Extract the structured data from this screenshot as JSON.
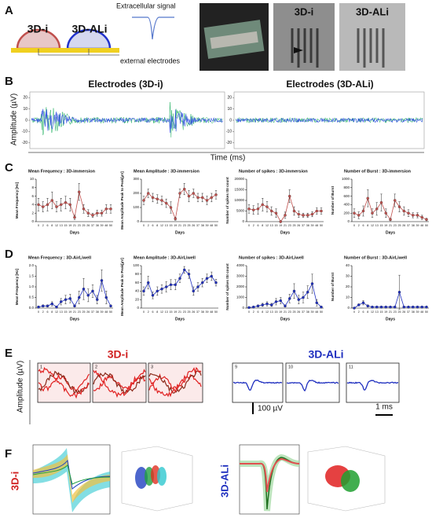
{
  "panel_labels": [
    "A",
    "B",
    "C",
    "D",
    "E",
    "F"
  ],
  "a": {
    "left_label": "3D-i",
    "right_label": "3D-ALi",
    "signal_label": "Extracellular signal",
    "electrode_label": "external electrodes",
    "photo_left": "3D-i",
    "photo_right": "3D-ALi"
  },
  "b": {
    "left_title": "Electrodes (3D-i)",
    "right_title": "Electrodes (3D-ALi)",
    "y_label": "Amplitude (µV)",
    "x_label": "Time (ms)",
    "ylim": [
      -25,
      25
    ],
    "yticks": [
      20,
      10,
      0,
      -10,
      -20
    ]
  },
  "chart_data": [
    {
      "type": "line",
      "title": "Mean Frequency : 3D-immersion",
      "y_label": "Mean Frequency [Hz]",
      "x_label": "Days",
      "color": "#c0504d",
      "categories": [
        "0",
        "2",
        "6",
        "8",
        "12",
        "13",
        "15",
        "19",
        "21",
        "23",
        "25",
        "26",
        "37",
        "38",
        "39",
        "48",
        "50"
      ],
      "values": [
        4,
        3.5,
        4,
        5,
        3.5,
        4,
        4.5,
        4,
        1,
        7,
        3,
        2,
        1.5,
        2,
        2,
        3,
        3
      ],
      "errors": [
        1.5,
        1.2,
        1.5,
        2,
        1.2,
        1.5,
        1.5,
        1.5,
        0.5,
        2,
        1,
        0.8,
        0.5,
        0.7,
        0.7,
        1,
        1
      ],
      "ylim": [
        0,
        10
      ],
      "yticks": [
        0,
        2,
        4,
        6,
        8,
        10
      ]
    },
    {
      "type": "line",
      "title": "Mean Amplitude : 3D-immersion",
      "y_label": "Mean Amplitude Peak to Peak[µV]",
      "x_label": "Days",
      "color": "#c0504d",
      "categories": [
        "0",
        "2",
        "6",
        "8",
        "12",
        "13",
        "15",
        "19",
        "21",
        "23",
        "25",
        "26",
        "37",
        "38",
        "39",
        "48",
        "50"
      ],
      "values": [
        150,
        200,
        170,
        160,
        150,
        130,
        100,
        20,
        200,
        230,
        180,
        200,
        170,
        170,
        150,
        170,
        190
      ],
      "errors": [
        30,
        30,
        30,
        30,
        30,
        30,
        40,
        10,
        30,
        40,
        40,
        30,
        30,
        30,
        30,
        30,
        30
      ],
      "ylim": [
        0,
        300
      ],
      "yticks": [
        0,
        100,
        200,
        300
      ]
    },
    {
      "type": "line",
      "title": "Number of spikes : 3D-immersion",
      "y_label": "Number of spikes ISI count",
      "x_label": "Days",
      "color": "#c0504d",
      "categories": [
        "0",
        "2",
        "6",
        "8",
        "12",
        "13",
        "15",
        "19",
        "21",
        "23",
        "25",
        "26",
        "37",
        "38",
        "39",
        "48",
        "50"
      ],
      "values": [
        6000,
        5500,
        6000,
        8000,
        7000,
        5000,
        4000,
        0,
        3000,
        12000,
        5000,
        3500,
        3000,
        3000,
        3500,
        5000,
        5000
      ],
      "errors": [
        2000,
        2000,
        2500,
        3000,
        2500,
        2000,
        2000,
        500,
        1500,
        3000,
        2000,
        1500,
        1000,
        1000,
        1200,
        1500,
        1500
      ],
      "ylim": [
        0,
        20000
      ],
      "yticks": [
        0,
        5000,
        10000,
        15000,
        20000
      ]
    },
    {
      "type": "line",
      "title": "Number of Burst : 3D-immersion",
      "y_label": "Number of Burst",
      "x_label": "Days",
      "color": "#c0504d",
      "categories": [
        "0",
        "2",
        "6",
        "8",
        "12",
        "13",
        "15",
        "19",
        "21",
        "23",
        "25",
        "26",
        "37",
        "38",
        "39",
        "48",
        "50"
      ],
      "values": [
        200,
        150,
        250,
        550,
        200,
        300,
        450,
        200,
        50,
        500,
        350,
        250,
        200,
        150,
        150,
        100,
        50
      ],
      "errors": [
        100,
        80,
        120,
        200,
        100,
        150,
        200,
        100,
        30,
        150,
        120,
        100,
        80,
        60,
        60,
        50,
        30
      ],
      "ylim": [
        0,
        1000
      ],
      "yticks": [
        0,
        200,
        400,
        600,
        800,
        1000
      ]
    },
    {
      "type": "line",
      "title": "Mean Frequency : 3D-AirLiwell",
      "y_label": "Mean Frequency [Hz]",
      "x_label": "Days",
      "color": "#1f2fbf",
      "categories": [
        "0",
        "2",
        "6",
        "8",
        "12",
        "13",
        "15",
        "19",
        "21",
        "23",
        "25",
        "26",
        "37",
        "38",
        "39",
        "48",
        "50"
      ],
      "values": [
        0.05,
        0.1,
        0.1,
        0.2,
        0.05,
        0.3,
        0.4,
        0.45,
        0.1,
        0.5,
        0.9,
        0.6,
        0.8,
        0.4,
        1.3,
        0.5,
        0.1
      ],
      "errors": [
        0.05,
        0.05,
        0.05,
        0.1,
        0.05,
        0.15,
        0.2,
        0.2,
        0.05,
        0.3,
        0.5,
        0.3,
        0.3,
        0.2,
        0.5,
        0.3,
        0.05
      ],
      "ylim": [
        0,
        2
      ],
      "yticks": [
        {
          "value": 0,
          "label": "0.0"
        },
        {
          "value": 0.5,
          "label": "0.5"
        },
        {
          "value": 1,
          "label": "1.0"
        },
        {
          "value": 1.5,
          "label": "1.5"
        },
        {
          "value": 2,
          "label": "2.0"
        }
      ]
    },
    {
      "type": "line",
      "title": "Mean Amplitude : 3D-AirLiwell",
      "y_label": "Mean Amplitude Peak to Peak[µV]",
      "x_label": "Days",
      "color": "#1f2fbf",
      "categories": [
        "0",
        "2",
        "6",
        "8",
        "12",
        "13",
        "15",
        "19",
        "21",
        "23",
        "25",
        "26",
        "37",
        "38",
        "39",
        "48",
        "50"
      ],
      "values": [
        40,
        60,
        30,
        40,
        45,
        50,
        55,
        55,
        70,
        90,
        80,
        40,
        50,
        60,
        70,
        75,
        60
      ],
      "errors": [
        10,
        15,
        8,
        10,
        10,
        12,
        12,
        12,
        10,
        8,
        10,
        10,
        10,
        10,
        10,
        10,
        8
      ],
      "ylim": [
        0,
        100
      ],
      "yticks": [
        0,
        20,
        40,
        60,
        80,
        100
      ]
    },
    {
      "type": "line",
      "title": "Number of spikes : 3D-AirLiwell",
      "y_label": "Number of spikes ISI count",
      "x_label": "Days",
      "color": "#1f2fbf",
      "categories": [
        "0",
        "2",
        "6",
        "8",
        "12",
        "13",
        "15",
        "19",
        "21",
        "23",
        "25",
        "26",
        "37",
        "38",
        "39",
        "48",
        "50"
      ],
      "values": [
        50,
        100,
        200,
        300,
        400,
        300,
        600,
        700,
        200,
        900,
        1600,
        800,
        1000,
        1500,
        2300,
        500,
        100
      ],
      "errors": [
        30,
        50,
        100,
        150,
        200,
        150,
        300,
        300,
        100,
        400,
        700,
        400,
        500,
        600,
        900,
        300,
        50
      ],
      "ylim": [
        0,
        4000
      ],
      "yticks": [
        0,
        1000,
        2000,
        3000,
        4000
      ]
    },
    {
      "type": "line",
      "title": "Number of Burst : 3D-AirLiwell",
      "y_label": "Number of Burst",
      "x_label": "Days",
      "color": "#1f2fbf",
      "categories": [
        "0",
        "2",
        "6",
        "8",
        "12",
        "13",
        "15",
        "19",
        "21",
        "23",
        "25",
        "26",
        "37",
        "38",
        "39",
        "48",
        "50"
      ],
      "values": [
        0,
        3,
        5,
        2,
        1,
        1,
        1,
        1,
        1,
        1,
        15,
        1,
        1,
        1,
        1,
        1,
        1
      ],
      "errors": [
        0,
        1,
        2,
        1,
        0.5,
        0.5,
        0.5,
        0.5,
        0.5,
        0.5,
        16,
        0.5,
        0.5,
        0.5,
        0.5,
        0.5,
        0.5
      ],
      "ylim": [
        0,
        40
      ],
      "yticks": [
        0,
        10,
        20,
        30,
        40
      ]
    }
  ],
  "e": {
    "left_title": "3D-i",
    "right_title": "3D-ALi",
    "y_label": "Amplitude (µV)",
    "channels": [
      "1",
      "2",
      "3",
      "9",
      "10",
      "11"
    ],
    "scale_v": "100 µV",
    "scale_t": "1 ms"
  },
  "f": {
    "left_label": "3D-i",
    "right_label": "3D-ALi"
  }
}
